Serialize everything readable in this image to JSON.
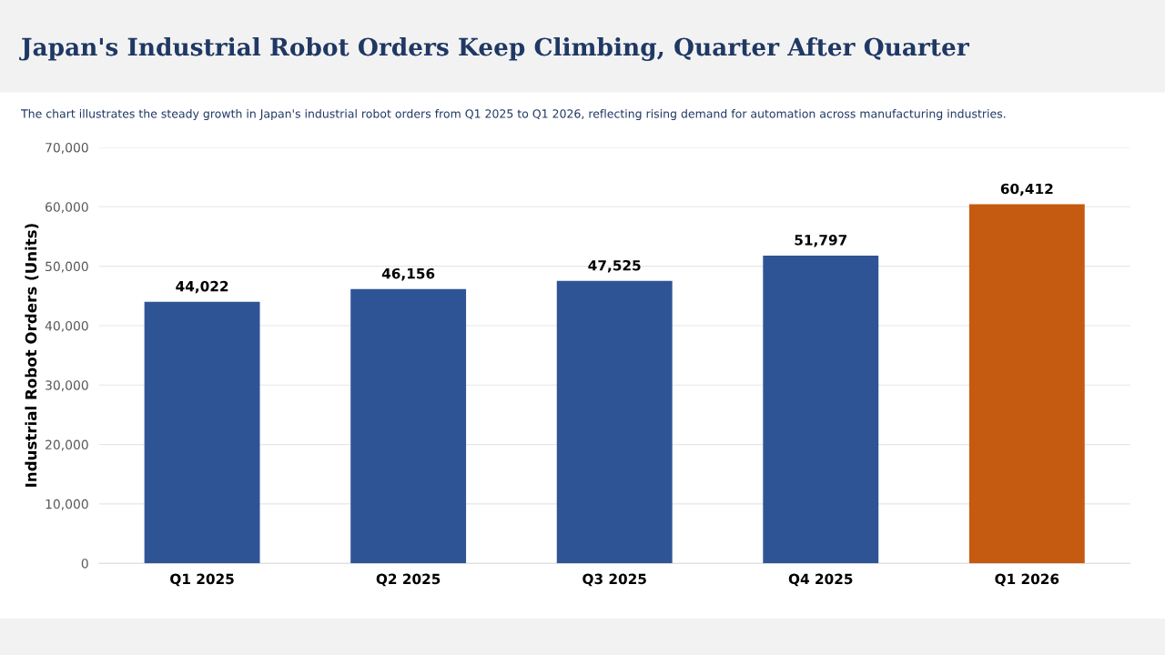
{
  "chart_data": {
    "type": "bar",
    "title": "Japan's Industrial Robot Orders Keep Climbing, Quarter After Quarter",
    "subtitle": "The chart illustrates the steady growth in Japan's industrial robot orders from Q1 2025 to Q1 2026, reflecting rising demand for automation across manufacturing industries.",
    "ylabel": "Industrial Robot Orders (Units)",
    "categories": [
      "Q1 2025",
      "Q2 2025",
      "Q3 2025",
      "Q4 2025",
      "Q1 2026"
    ],
    "values": [
      44022,
      46156,
      47525,
      51797,
      60412
    ],
    "colors": [
      "#2f5496",
      "#2f5496",
      "#2f5496",
      "#2f5496",
      "#c55a11"
    ],
    "value_labels": [
      "44,022",
      "46,156",
      "47,525",
      "51,797",
      "60,412"
    ],
    "ylim": [
      0,
      70000
    ],
    "yticks": [
      {
        "value": 0,
        "label": "0"
      },
      {
        "value": 10000,
        "label": "10,000"
      },
      {
        "value": 20000,
        "label": "20,000"
      },
      {
        "value": 30000,
        "label": "30,000"
      },
      {
        "value": 40000,
        "label": "40,000"
      },
      {
        "value": 50000,
        "label": "50,000"
      },
      {
        "value": 60000,
        "label": "60,000"
      },
      {
        "value": 70000,
        "label": "70,000"
      }
    ],
    "grid": "y",
    "legend": false
  }
}
